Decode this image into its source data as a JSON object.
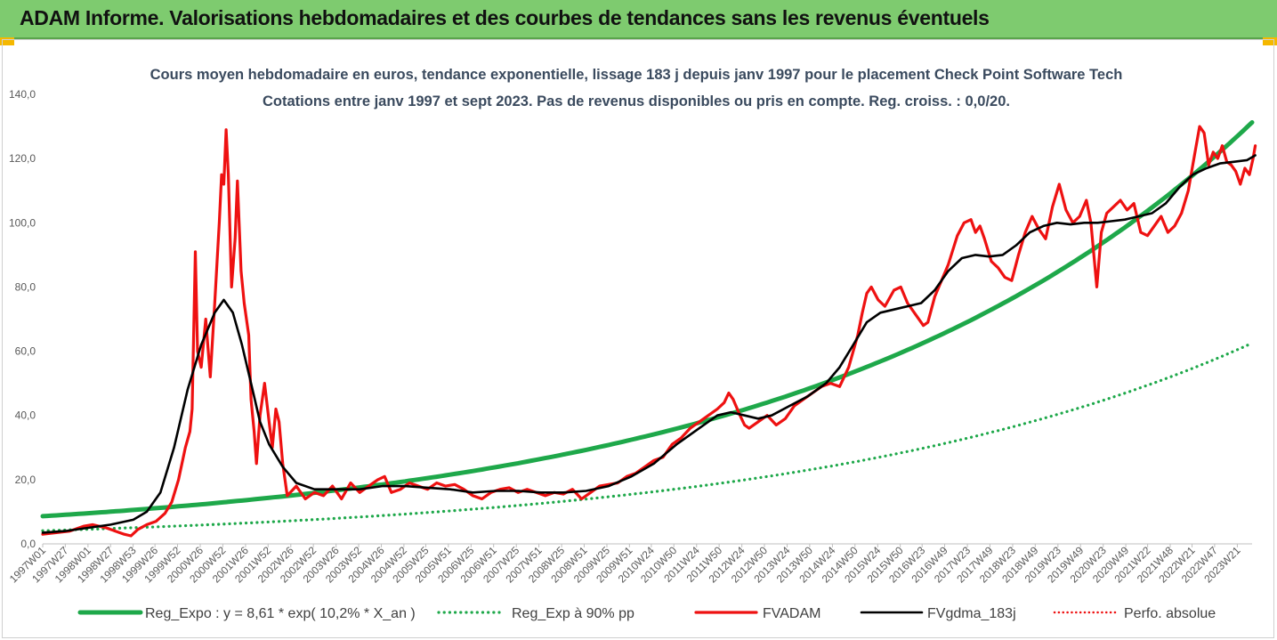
{
  "banner": {
    "title": "ADAM Informe. Valorisations hebdomadaires et des courbes de tendances sans les revenus éventuels",
    "background": "#7ecb6f",
    "corner_color": "#f5b800"
  },
  "chart_data": {
    "type": "line",
    "title": "Cours moyen hebdomadaire en euros, tendance exponentielle, lissage 183 j depuis janv 1997 pour le placement Check Point Software Tech",
    "subtitle": "Cotations entre janv 1997 et sept 2023. Pas de revenus disponibles ou pris en compte. Reg. croiss. : 0,0/20.",
    "xlabel": "",
    "ylabel": "",
    "x_range": [
      "1997W01",
      "2023W38"
    ],
    "x_tick_labels": [
      "1997W01",
      "1997W27",
      "1998W01",
      "1998W27",
      "1998W53",
      "1999W26",
      "1999W52",
      "2000W26",
      "2000W52",
      "2001W26",
      "2001W52",
      "2002W26",
      "2002W52",
      "2003W26",
      "2003W52",
      "2004W26",
      "2004W52",
      "2005W25",
      "2005W51",
      "2006W25",
      "2006W51",
      "2007W25",
      "2007W51",
      "2008W25",
      "2008W51",
      "2009W25",
      "2009W51",
      "2010W24",
      "2010W50",
      "2011W24",
      "2011W50",
      "2012W24",
      "2012W50",
      "2013W24",
      "2013W50",
      "2014W24",
      "2014W50",
      "2015W24",
      "2015W50",
      "2016W23",
      "2016W49",
      "2017W23",
      "2017W49",
      "2018W23",
      "2018W49",
      "2019W23",
      "2019W49",
      "2020W23",
      "2020W49",
      "2021W22",
      "2021W48",
      "2022W21",
      "2022W47",
      "2023W21"
    ],
    "y_ticks": [
      "0,0",
      "20,0",
      "40,0",
      "60,0",
      "80,0",
      "100,0",
      "120,0",
      "140,0"
    ],
    "ylim": [
      0,
      140
    ],
    "grid": false,
    "legend_position": "bottom",
    "series": [
      {
        "name": "Reg_Expo : y = 8,61 * exp( 10,2% * X_an )",
        "color": "#1ea84a",
        "style": "solid",
        "width": 5,
        "formula": {
          "a": 8.61,
          "rate": 0.102
        }
      },
      {
        "name": "Reg_Exp à 90% pp",
        "color": "#1ea84a",
        "style": "dotted",
        "width": 3.2,
        "formula": {
          "a": 4.1,
          "rate": 0.102
        }
      },
      {
        "name": "FVADAM",
        "color": "#ee1111",
        "style": "solid",
        "width": 3.2,
        "points": [
          [
            1997.0,
            3
          ],
          [
            1997.3,
            3.5
          ],
          [
            1997.6,
            4
          ],
          [
            1997.9,
            5.5
          ],
          [
            1998.1,
            6
          ],
          [
            1998.4,
            5
          ],
          [
            1998.6,
            4
          ],
          [
            1998.8,
            3
          ],
          [
            1998.95,
            2.5
          ],
          [
            1999.1,
            4.5
          ],
          [
            1999.3,
            6
          ],
          [
            1999.5,
            7
          ],
          [
            1999.7,
            9.5
          ],
          [
            1999.85,
            13
          ],
          [
            2000.0,
            20
          ],
          [
            2000.15,
            30
          ],
          [
            2000.25,
            35
          ],
          [
            2000.3,
            42
          ],
          [
            2000.37,
            91
          ],
          [
            2000.42,
            60
          ],
          [
            2000.5,
            55
          ],
          [
            2000.6,
            70
          ],
          [
            2000.7,
            52
          ],
          [
            2000.8,
            75
          ],
          [
            2000.9,
            100
          ],
          [
            2000.95,
            115
          ],
          [
            2001.0,
            112
          ],
          [
            2001.05,
            129
          ],
          [
            2001.1,
            115
          ],
          [
            2001.17,
            80
          ],
          [
            2001.25,
            95
          ],
          [
            2001.3,
            113
          ],
          [
            2001.38,
            85
          ],
          [
            2001.45,
            75
          ],
          [
            2001.55,
            65
          ],
          [
            2001.6,
            45
          ],
          [
            2001.67,
            35
          ],
          [
            2001.72,
            25
          ],
          [
            2001.8,
            40
          ],
          [
            2001.9,
            50
          ],
          [
            2002.0,
            38
          ],
          [
            2002.07,
            30
          ],
          [
            2002.15,
            42
          ],
          [
            2002.22,
            38
          ],
          [
            2002.3,
            25
          ],
          [
            2002.4,
            15
          ],
          [
            2002.6,
            18
          ],
          [
            2002.8,
            14
          ],
          [
            2003.0,
            16
          ],
          [
            2003.2,
            15
          ],
          [
            2003.4,
            18
          ],
          [
            2003.6,
            14
          ],
          [
            2003.8,
            19
          ],
          [
            2004.0,
            16
          ],
          [
            2004.2,
            18
          ],
          [
            2004.4,
            20
          ],
          [
            2004.55,
            21
          ],
          [
            2004.7,
            16
          ],
          [
            2004.9,
            17
          ],
          [
            2005.1,
            19
          ],
          [
            2005.3,
            18
          ],
          [
            2005.5,
            17
          ],
          [
            2005.7,
            19
          ],
          [
            2005.9,
            18
          ],
          [
            2006.1,
            18.5
          ],
          [
            2006.3,
            17
          ],
          [
            2006.5,
            15
          ],
          [
            2006.7,
            14
          ],
          [
            2006.9,
            16
          ],
          [
            2007.1,
            17
          ],
          [
            2007.3,
            17.5
          ],
          [
            2007.5,
            16
          ],
          [
            2007.7,
            17
          ],
          [
            2007.9,
            16
          ],
          [
            2008.1,
            15
          ],
          [
            2008.3,
            16
          ],
          [
            2008.5,
            15.5
          ],
          [
            2008.7,
            17
          ],
          [
            2008.9,
            14
          ],
          [
            2009.1,
            16
          ],
          [
            2009.3,
            18
          ],
          [
            2009.5,
            18.5
          ],
          [
            2009.7,
            19
          ],
          [
            2009.9,
            21
          ],
          [
            2010.1,
            22
          ],
          [
            2010.3,
            24
          ],
          [
            2010.5,
            26
          ],
          [
            2010.7,
            27
          ],
          [
            2010.9,
            31
          ],
          [
            2011.1,
            33
          ],
          [
            2011.3,
            36
          ],
          [
            2011.5,
            38
          ],
          [
            2011.7,
            40
          ],
          [
            2011.9,
            42
          ],
          [
            2012.05,
            44
          ],
          [
            2012.15,
            47
          ],
          [
            2012.25,
            45
          ],
          [
            2012.4,
            40
          ],
          [
            2012.5,
            37
          ],
          [
            2012.6,
            36
          ],
          [
            2012.8,
            38
          ],
          [
            2013.0,
            40
          ],
          [
            2013.2,
            37
          ],
          [
            2013.4,
            39
          ],
          [
            2013.6,
            43
          ],
          [
            2013.8,
            45
          ],
          [
            2014.0,
            47
          ],
          [
            2014.2,
            49
          ],
          [
            2014.4,
            50
          ],
          [
            2014.6,
            49
          ],
          [
            2014.8,
            55
          ],
          [
            2015.0,
            65
          ],
          [
            2015.1,
            72
          ],
          [
            2015.2,
            78
          ],
          [
            2015.3,
            80
          ],
          [
            2015.45,
            76
          ],
          [
            2015.6,
            74
          ],
          [
            2015.8,
            79
          ],
          [
            2015.95,
            80
          ],
          [
            2016.1,
            75
          ],
          [
            2016.3,
            71
          ],
          [
            2016.45,
            68
          ],
          [
            2016.55,
            69
          ],
          [
            2016.7,
            77
          ],
          [
            2016.85,
            82
          ],
          [
            2017.0,
            87
          ],
          [
            2017.2,
            96
          ],
          [
            2017.35,
            100
          ],
          [
            2017.5,
            101
          ],
          [
            2017.6,
            97
          ],
          [
            2017.7,
            99
          ],
          [
            2017.8,
            95
          ],
          [
            2017.95,
            88
          ],
          [
            2018.1,
            86
          ],
          [
            2018.25,
            83
          ],
          [
            2018.4,
            82
          ],
          [
            2018.55,
            90
          ],
          [
            2018.7,
            97
          ],
          [
            2018.85,
            102
          ],
          [
            2019.0,
            98
          ],
          [
            2019.15,
            95
          ],
          [
            2019.3,
            105
          ],
          [
            2019.45,
            112
          ],
          [
            2019.6,
            104
          ],
          [
            2019.75,
            100
          ],
          [
            2019.9,
            102
          ],
          [
            2020.05,
            107
          ],
          [
            2020.15,
            100
          ],
          [
            2020.28,
            80
          ],
          [
            2020.38,
            97
          ],
          [
            2020.5,
            103
          ],
          [
            2020.65,
            105
          ],
          [
            2020.8,
            107
          ],
          [
            2020.95,
            104
          ],
          [
            2021.1,
            106
          ],
          [
            2021.25,
            97
          ],
          [
            2021.4,
            96
          ],
          [
            2021.55,
            99
          ],
          [
            2021.7,
            102
          ],
          [
            2021.85,
            97
          ],
          [
            2022.0,
            99
          ],
          [
            2022.15,
            103
          ],
          [
            2022.3,
            110
          ],
          [
            2022.45,
            122
          ],
          [
            2022.55,
            130
          ],
          [
            2022.65,
            128
          ],
          [
            2022.75,
            118
          ],
          [
            2022.85,
            122
          ],
          [
            2022.95,
            120
          ],
          [
            2023.05,
            124
          ],
          [
            2023.15,
            119
          ],
          [
            2023.25,
            118
          ],
          [
            2023.35,
            116
          ],
          [
            2023.45,
            112
          ],
          [
            2023.55,
            117
          ],
          [
            2023.65,
            115
          ],
          [
            2023.73,
            120
          ],
          [
            2023.78,
            124
          ]
        ]
      },
      {
        "name": "FVgdma_183j",
        "color": "#000000",
        "style": "solid",
        "width": 2.6,
        "points": [
          [
            1997.0,
            3.5
          ],
          [
            1997.5,
            4
          ],
          [
            1998.0,
            5
          ],
          [
            1998.5,
            6
          ],
          [
            1999.0,
            7.5
          ],
          [
            1999.3,
            10
          ],
          [
            1999.6,
            16
          ],
          [
            1999.9,
            30
          ],
          [
            2000.2,
            48
          ],
          [
            2000.5,
            62
          ],
          [
            2000.8,
            72
          ],
          [
            2001.0,
            76
          ],
          [
            2001.2,
            72
          ],
          [
            2001.4,
            62
          ],
          [
            2001.6,
            50
          ],
          [
            2001.8,
            38
          ],
          [
            2002.0,
            31
          ],
          [
            2002.3,
            24
          ],
          [
            2002.6,
            19
          ],
          [
            2003.0,
            17
          ],
          [
            2003.5,
            17
          ],
          [
            2004.0,
            17
          ],
          [
            2004.5,
            18
          ],
          [
            2005.0,
            18
          ],
          [
            2005.5,
            17.5
          ],
          [
            2006.0,
            17
          ],
          [
            2006.5,
            16
          ],
          [
            2007.0,
            16.5
          ],
          [
            2007.5,
            16.5
          ],
          [
            2008.0,
            16
          ],
          [
            2008.5,
            16
          ],
          [
            2009.0,
            16.5
          ],
          [
            2009.5,
            18
          ],
          [
            2010.0,
            21
          ],
          [
            2010.5,
            25
          ],
          [
            2011.0,
            31
          ],
          [
            2011.5,
            36
          ],
          [
            2011.9,
            40
          ],
          [
            2012.2,
            41
          ],
          [
            2012.5,
            40
          ],
          [
            2012.8,
            39
          ],
          [
            2013.1,
            40
          ],
          [
            2013.5,
            43
          ],
          [
            2013.9,
            46
          ],
          [
            2014.3,
            50
          ],
          [
            2014.6,
            55
          ],
          [
            2014.9,
            62
          ],
          [
            2015.2,
            69
          ],
          [
            2015.5,
            72
          ],
          [
            2015.8,
            73
          ],
          [
            2016.1,
            74
          ],
          [
            2016.4,
            75
          ],
          [
            2016.7,
            79
          ],
          [
            2017.0,
            85
          ],
          [
            2017.3,
            89
          ],
          [
            2017.6,
            90
          ],
          [
            2017.9,
            89.5
          ],
          [
            2018.2,
            90
          ],
          [
            2018.5,
            93
          ],
          [
            2018.8,
            97
          ],
          [
            2019.1,
            99
          ],
          [
            2019.4,
            100
          ],
          [
            2019.7,
            99.5
          ],
          [
            2020.0,
            100
          ],
          [
            2020.3,
            100
          ],
          [
            2020.6,
            100.5
          ],
          [
            2020.9,
            101
          ],
          [
            2021.2,
            102
          ],
          [
            2021.5,
            103
          ],
          [
            2021.8,
            106
          ],
          [
            2022.1,
            111
          ],
          [
            2022.4,
            115
          ],
          [
            2022.7,
            117
          ],
          [
            2023.0,
            118.5
          ],
          [
            2023.3,
            119
          ],
          [
            2023.6,
            119.5
          ],
          [
            2023.78,
            121
          ]
        ]
      },
      {
        "name": "Perfo. absolue",
        "color": "#ee1111",
        "style": "dotted",
        "width": 2.5,
        "points": []
      }
    ]
  }
}
